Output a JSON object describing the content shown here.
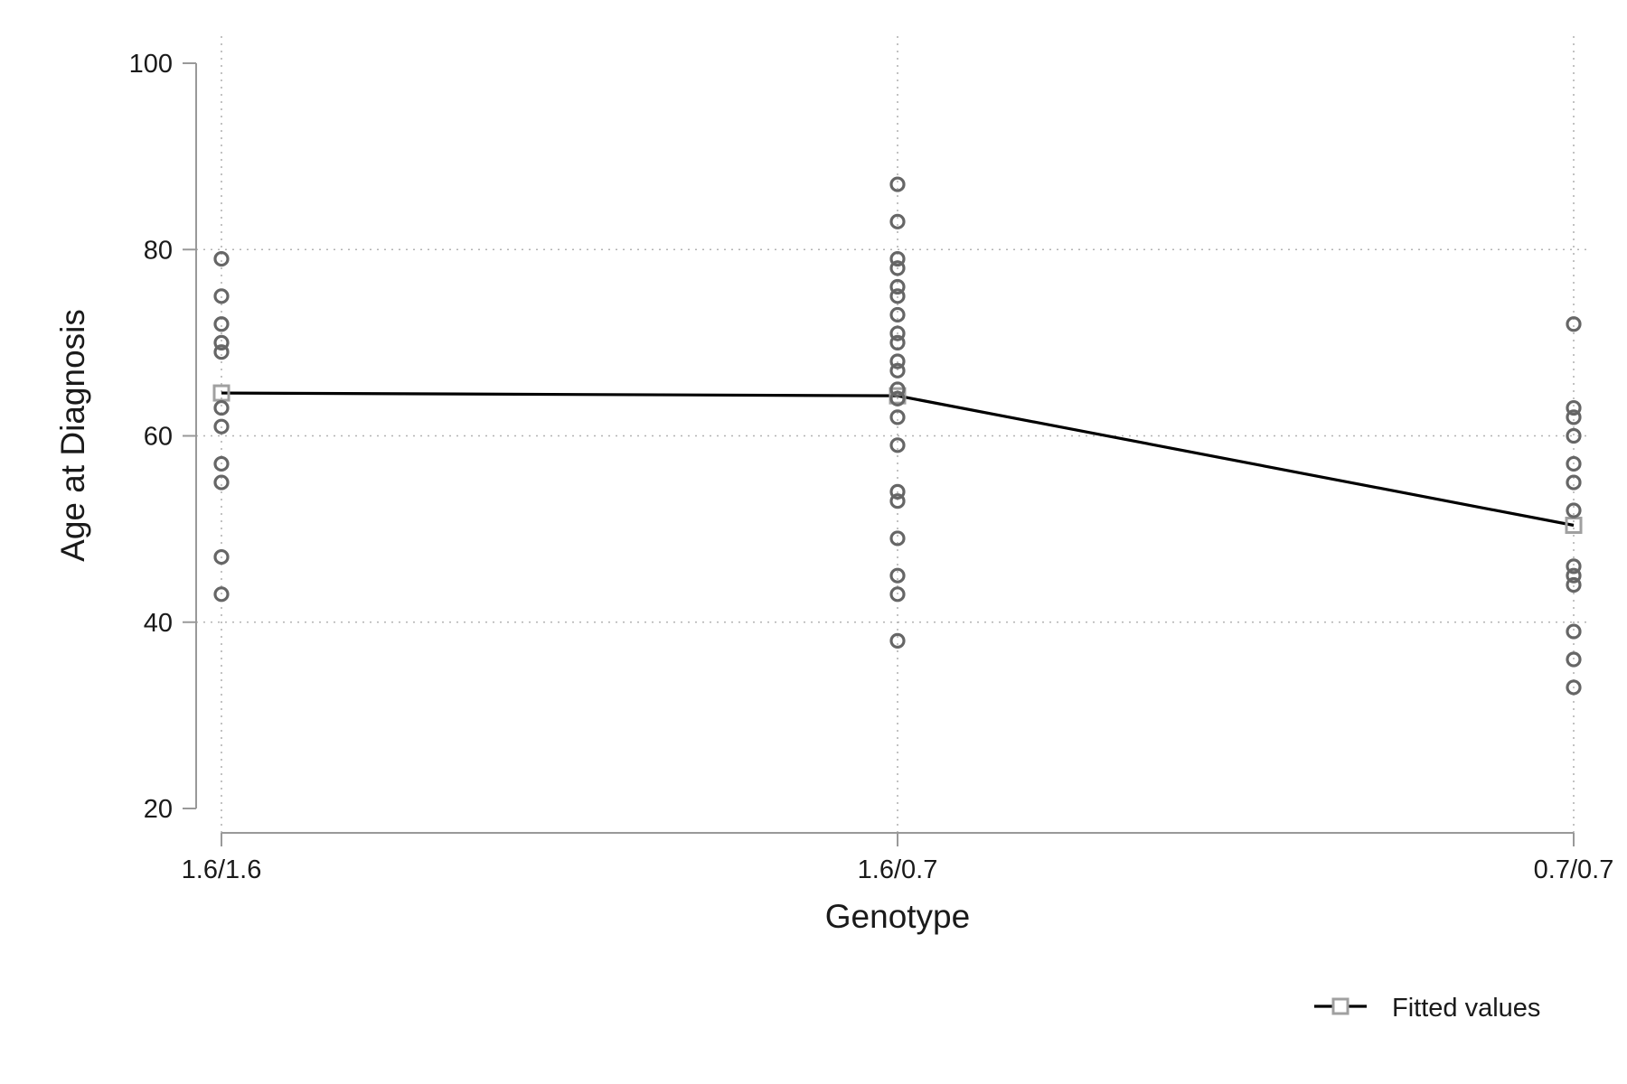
{
  "chart_data": {
    "type": "scatter",
    "title": "",
    "xlabel": "Genotype",
    "ylabel": "Age at Diagnosis",
    "categories": [
      "1.6/1.6",
      "1.6/0.7",
      "0.7/0.7"
    ],
    "ylim": [
      20,
      100
    ],
    "yticks": [
      20,
      40,
      60,
      80,
      100
    ],
    "grid": true,
    "legend_position": "bottom-right",
    "colors": {
      "points": "#666666",
      "fitted_line": "#000000",
      "fitted_marker": "#a0a0a0",
      "axis": "#999999",
      "grid": "#b3b3b3"
    },
    "series": [
      {
        "kind": "scatter",
        "marker": "hollow-circle",
        "points": [
          {
            "x": "1.6/1.6",
            "y": 79
          },
          {
            "x": "1.6/1.6",
            "y": 75
          },
          {
            "x": "1.6/1.6",
            "y": 72
          },
          {
            "x": "1.6/1.6",
            "y": 70
          },
          {
            "x": "1.6/1.6",
            "y": 69
          },
          {
            "x": "1.6/1.6",
            "y": 63
          },
          {
            "x": "1.6/1.6",
            "y": 61
          },
          {
            "x": "1.6/1.6",
            "y": 57
          },
          {
            "x": "1.6/1.6",
            "y": 55
          },
          {
            "x": "1.6/1.6",
            "y": 47
          },
          {
            "x": "1.6/1.6",
            "y": 43
          },
          {
            "x": "1.6/0.7",
            "y": 87
          },
          {
            "x": "1.6/0.7",
            "y": 83
          },
          {
            "x": "1.6/0.7",
            "y": 79
          },
          {
            "x": "1.6/0.7",
            "y": 78
          },
          {
            "x": "1.6/0.7",
            "y": 76
          },
          {
            "x": "1.6/0.7",
            "y": 75
          },
          {
            "x": "1.6/0.7",
            "y": 73
          },
          {
            "x": "1.6/0.7",
            "y": 71
          },
          {
            "x": "1.6/0.7",
            "y": 70
          },
          {
            "x": "1.6/0.7",
            "y": 68
          },
          {
            "x": "1.6/0.7",
            "y": 67
          },
          {
            "x": "1.6/0.7",
            "y": 65
          },
          {
            "x": "1.6/0.7",
            "y": 64
          },
          {
            "x": "1.6/0.7",
            "y": 62
          },
          {
            "x": "1.6/0.7",
            "y": 59
          },
          {
            "x": "1.6/0.7",
            "y": 54
          },
          {
            "x": "1.6/0.7",
            "y": 53
          },
          {
            "x": "1.6/0.7",
            "y": 49
          },
          {
            "x": "1.6/0.7",
            "y": 45
          },
          {
            "x": "1.6/0.7",
            "y": 43
          },
          {
            "x": "1.6/0.7",
            "y": 38
          },
          {
            "x": "0.7/0.7",
            "y": 72
          },
          {
            "x": "0.7/0.7",
            "y": 63
          },
          {
            "x": "0.7/0.7",
            "y": 62
          },
          {
            "x": "0.7/0.7",
            "y": 60
          },
          {
            "x": "0.7/0.7",
            "y": 57
          },
          {
            "x": "0.7/0.7",
            "y": 55
          },
          {
            "x": "0.7/0.7",
            "y": 52
          },
          {
            "x": "0.7/0.7",
            "y": 46
          },
          {
            "x": "0.7/0.7",
            "y": 45
          },
          {
            "x": "0.7/0.7",
            "y": 44
          },
          {
            "x": "0.7/0.7",
            "y": 39
          },
          {
            "x": "0.7/0.7",
            "y": 36
          },
          {
            "x": "0.7/0.7",
            "y": 33
          }
        ]
      },
      {
        "kind": "line",
        "name": "Fitted values",
        "marker": "hollow-square",
        "points": [
          {
            "x": "1.6/1.6",
            "y": 64.6
          },
          {
            "x": "1.6/0.7",
            "y": 64.3
          },
          {
            "x": "0.7/0.7",
            "y": 50.4
          }
        ]
      }
    ]
  }
}
